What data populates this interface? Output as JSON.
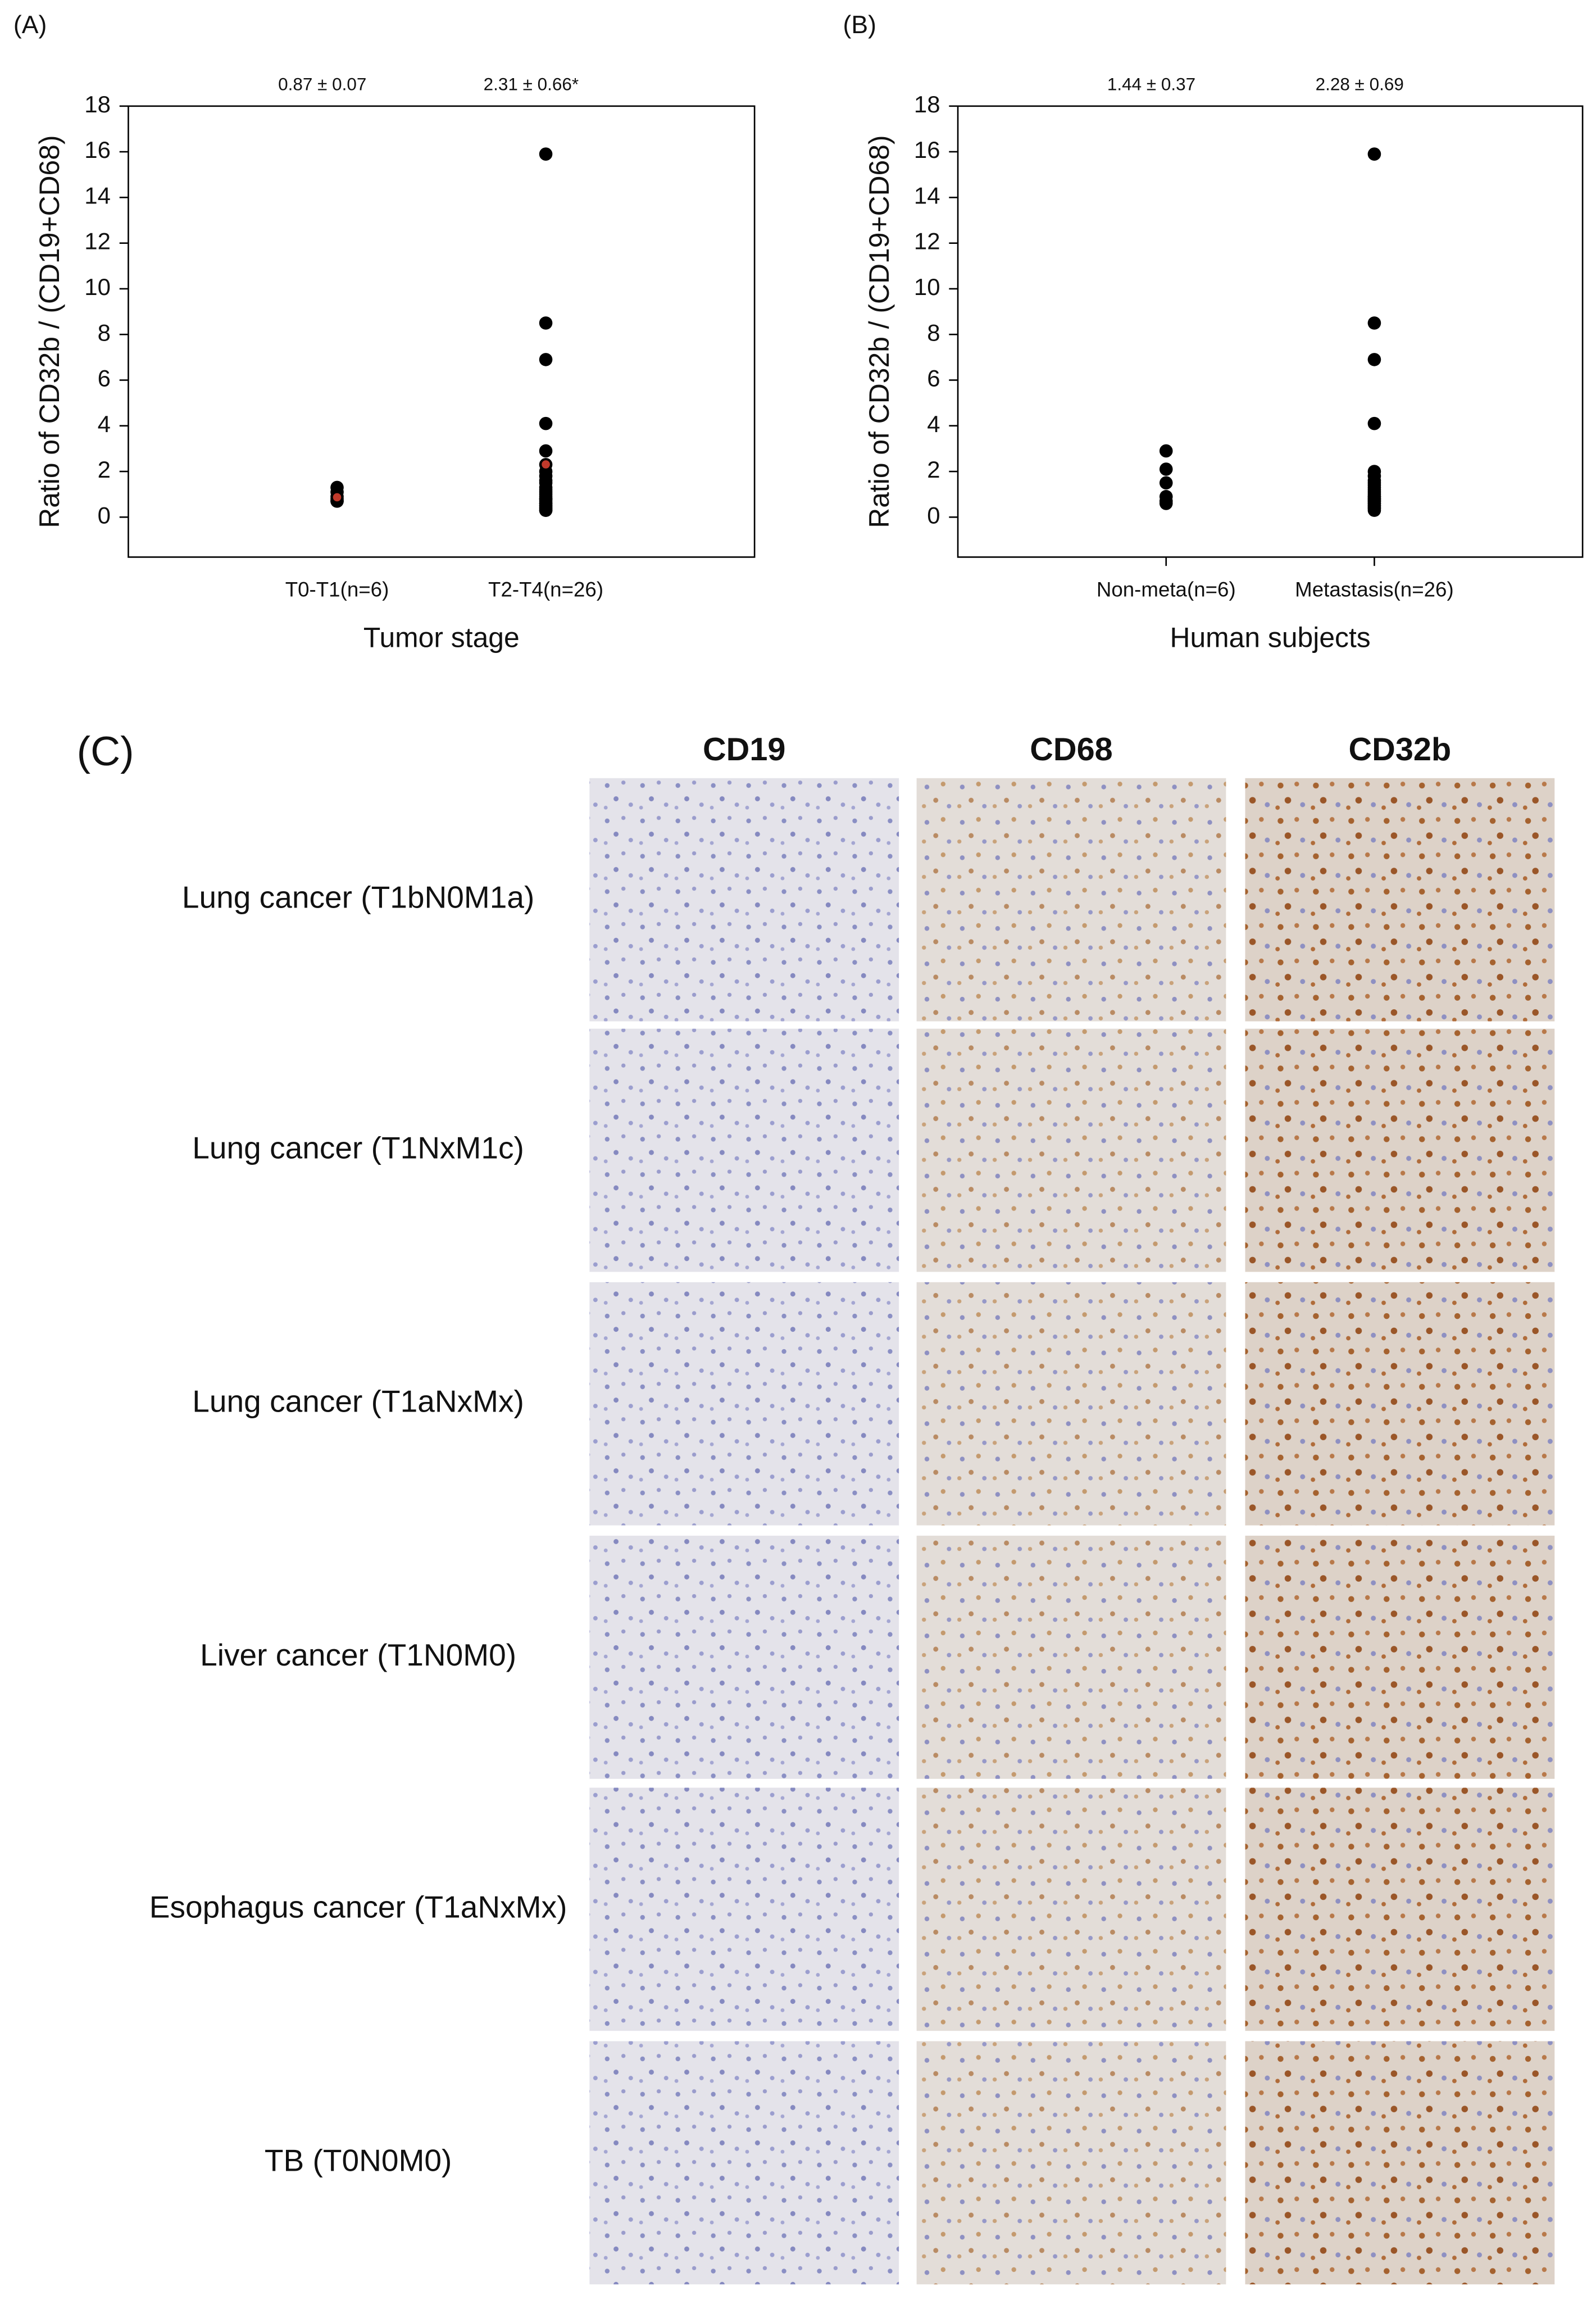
{
  "chart_data": [
    {
      "type": "scatter",
      "panel_label": "(A)",
      "y_label": "Ratio of CD32b / (CD19+CD68)",
      "x_label": "Tumor stage",
      "categories": [
        "T0-T1(n=6)",
        "T2-T4(n=26)"
      ],
      "annotations": [
        "0.87 ± 0.07",
        "2.31 ± 0.66*"
      ],
      "values": [
        [
          1.3,
          1.1,
          0.9,
          0.8,
          0.7,
          0.7
        ],
        [
          15.9,
          8.5,
          6.9,
          4.1,
          2.9,
          2.3,
          2.0,
          1.8,
          1.6,
          1.5,
          1.3,
          1.2,
          1.1,
          1.0,
          0.9,
          0.8,
          0.8,
          0.7,
          0.6,
          0.6,
          0.5,
          0.5,
          0.4,
          0.4,
          0.3,
          0.3
        ]
      ],
      "color": "#000000",
      "means": [
        0.87,
        2.31
      ],
      "mean_color": "#c0392b",
      "ylim": [
        -1.75,
        18
      ],
      "yticks": [
        0,
        2,
        4,
        6,
        8,
        10,
        12,
        14,
        16,
        18
      ]
    },
    {
      "type": "scatter",
      "panel_label": "(B)",
      "y_label": "Ratio of CD32b / (CD19+CD68)",
      "x_label": "Human subjects",
      "categories": [
        "Non-meta(n=6)",
        "Metastasis(n=26)"
      ],
      "annotations": [
        "1.44 ± 0.37",
        "2.28 ± 0.69"
      ],
      "values": [
        [
          2.9,
          2.1,
          1.5,
          0.9,
          0.7,
          0.6
        ],
        [
          15.9,
          8.5,
          6.9,
          4.1,
          2.0,
          1.8,
          1.6,
          1.5,
          1.4,
          1.3,
          1.2,
          1.1,
          1.0,
          0.9,
          0.9,
          0.8,
          0.8,
          0.7,
          0.7,
          0.6,
          0.6,
          0.5,
          0.5,
          0.4,
          0.4,
          0.3
        ]
      ],
      "color": "#000000",
      "ylim": [
        -1.75,
        18
      ],
      "yticks": [
        0,
        2,
        4,
        6,
        8,
        10,
        12,
        14,
        16,
        18
      ],
      "category_ticks": true
    }
  ],
  "panel_c": {
    "label": "(C)",
    "columns": [
      "CD19",
      "CD68",
      "CD32b"
    ],
    "rows": [
      "Lung cancer (T1bN0M1a)",
      "Lung cancer (T1NxM1c)",
      "Lung cancer (T1aNxMx)",
      "Liver cancer (T1N0M0)",
      "Esophagus cancer (T1aNxMx)",
      "TB (T0N0M0)"
    ]
  }
}
